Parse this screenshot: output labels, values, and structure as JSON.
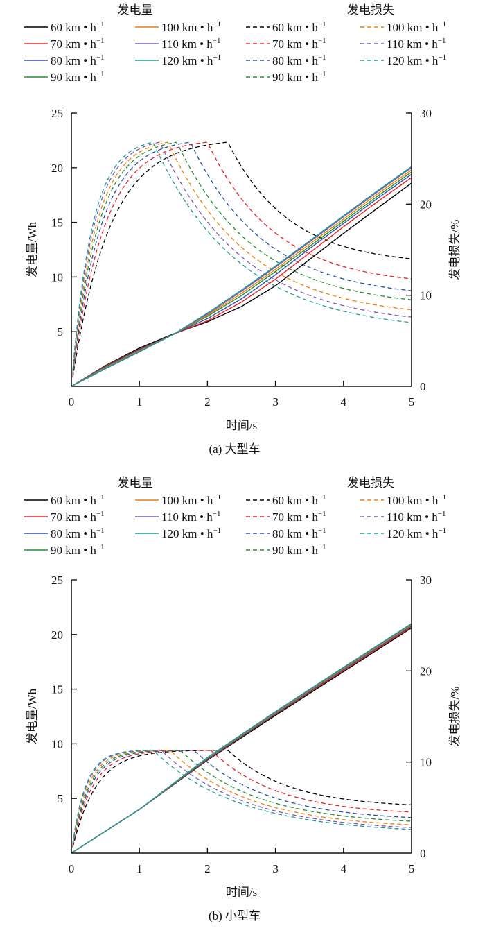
{
  "legend": {
    "group_power_title": "发电量",
    "group_loss_title": "发电损失",
    "unit": "km • h",
    "unit_sup": "−1"
  },
  "colors": {
    "60": "#000000",
    "70": "#e8202a",
    "80": "#2a4fa8",
    "90": "#1f8f2e",
    "100": "#f07f0a",
    "110": "#7a5cb8",
    "120": "#1f9a94"
  },
  "chart_data": [
    {
      "type": "line",
      "panel": "a",
      "caption": "(a)   大型车",
      "xlabel": "时间/s",
      "ylabel_left": "发电量/Wh",
      "ylabel_right": "发电损失/%",
      "xlim": [
        0,
        5
      ],
      "ylim_left": [
        0,
        25
      ],
      "ylim_right": [
        0,
        30
      ],
      "xticks": [
        "0",
        "1",
        "2",
        "3",
        "4",
        "5"
      ],
      "yticks_left": [
        "5",
        "10",
        "15",
        "20",
        "25"
      ],
      "yticks_right": [
        "0",
        "10",
        "20",
        "30"
      ],
      "grid": false,
      "legend_position": "top",
      "speeds": [
        "60",
        "70",
        "80",
        "90",
        "100",
        "110",
        "120"
      ],
      "power_series": [
        {
          "name": "60 km • h⁻¹",
          "x": [
            0,
            0.5,
            1,
            1.5,
            2,
            2.5,
            3,
            3.5,
            4,
            4.5,
            5
          ],
          "y": [
            0,
            1.9,
            3.5,
            4.8,
            5.9,
            7.3,
            9.2,
            11.6,
            14.0,
            16.3,
            18.6
          ]
        },
        {
          "name": "70 km • h⁻¹",
          "x": [
            0,
            0.5,
            1,
            1.5,
            2,
            2.5,
            3,
            3.5,
            4,
            4.5,
            5
          ],
          "y": [
            0,
            1.85,
            3.4,
            4.75,
            6.0,
            7.7,
            9.8,
            12.2,
            14.6,
            16.9,
            19.1
          ]
        },
        {
          "name": "80 km • h⁻¹",
          "x": [
            0,
            0.5,
            1,
            1.5,
            2,
            2.5,
            3,
            3.5,
            4,
            4.5,
            5
          ],
          "y": [
            0,
            1.8,
            3.35,
            4.75,
            6.2,
            8.0,
            10.2,
            12.6,
            14.9,
            17.2,
            19.4
          ]
        },
        {
          "name": "90 km • h⁻¹",
          "x": [
            0,
            0.5,
            1,
            1.5,
            2,
            2.5,
            3,
            3.5,
            4,
            4.5,
            5
          ],
          "y": [
            0,
            1.75,
            3.3,
            4.75,
            6.4,
            8.3,
            10.5,
            12.8,
            15.1,
            17.4,
            19.6
          ]
        },
        {
          "name": "100 km • h⁻¹",
          "x": [
            0,
            0.5,
            1,
            1.5,
            2,
            2.5,
            3,
            3.5,
            4,
            4.5,
            5
          ],
          "y": [
            0,
            1.7,
            3.25,
            4.75,
            6.5,
            8.5,
            10.7,
            13.0,
            15.3,
            17.6,
            19.8
          ]
        },
        {
          "name": "110 km • h⁻¹",
          "x": [
            0,
            0.5,
            1,
            1.5,
            2,
            2.5,
            3,
            3.5,
            4,
            4.5,
            5
          ],
          "y": [
            0,
            1.65,
            3.2,
            4.75,
            6.6,
            8.7,
            10.9,
            13.2,
            15.5,
            17.8,
            20.0
          ]
        },
        {
          "name": "120 km • h⁻¹",
          "x": [
            0,
            0.5,
            1,
            1.5,
            2,
            2.5,
            3,
            3.5,
            4,
            4.5,
            5
          ],
          "y": [
            0,
            1.6,
            3.15,
            4.75,
            6.7,
            8.8,
            11.0,
            13.3,
            15.6,
            17.9,
            20.1
          ]
        }
      ],
      "loss_series": [
        {
          "name": "60 km • h⁻¹",
          "peak_x": 2.3,
          "peak_y": 26.8,
          "rise_tau": 0.55,
          "end_y": 14.0
        },
        {
          "name": "70 km • h⁻¹",
          "peak_x": 2.0,
          "peak_y": 26.8,
          "rise_tau": 0.47,
          "end_y": 11.8
        },
        {
          "name": "80 km • h⁻¹",
          "peak_x": 1.75,
          "peak_y": 26.8,
          "rise_tau": 0.42,
          "end_y": 10.5
        },
        {
          "name": "90 km • h⁻¹",
          "peak_x": 1.55,
          "peak_y": 26.8,
          "rise_tau": 0.38,
          "end_y": 9.5
        },
        {
          "name": "100 km • h⁻¹",
          "peak_x": 1.42,
          "peak_y": 26.8,
          "rise_tau": 0.35,
          "end_y": 8.4
        },
        {
          "name": "110 km • h⁻¹",
          "peak_x": 1.3,
          "peak_y": 26.8,
          "rise_tau": 0.32,
          "end_y": 7.6
        },
        {
          "name": "120 km • h⁻¹",
          "peak_x": 1.2,
          "peak_y": 26.8,
          "rise_tau": 0.3,
          "end_y": 7.0
        }
      ]
    },
    {
      "type": "line",
      "panel": "b",
      "caption": "(b)   小型车",
      "xlabel": "时间/s",
      "ylabel_left": "发电量/Wh",
      "ylabel_right": "发电损失/%",
      "xlim": [
        0,
        5
      ],
      "ylim_left": [
        0,
        25
      ],
      "ylim_right": [
        0,
        30
      ],
      "xticks": [
        "0",
        "1",
        "2",
        "3",
        "4",
        "5"
      ],
      "yticks_left": [
        "5",
        "10",
        "15",
        "20",
        "25"
      ],
      "yticks_right": [
        "0",
        "10",
        "20",
        "30"
      ],
      "grid": false,
      "legend_position": "top",
      "speeds": [
        "60",
        "70",
        "80",
        "90",
        "100",
        "110",
        "120"
      ],
      "power_series": [
        {
          "name": "60 km • h⁻¹",
          "x": [
            0,
            1,
            2,
            3,
            4,
            5
          ],
          "y": [
            0,
            4.0,
            8.5,
            12.6,
            16.6,
            20.6
          ]
        },
        {
          "name": "70 km • h⁻¹",
          "x": [
            0,
            1,
            2,
            3,
            4,
            5
          ],
          "y": [
            0,
            4.0,
            8.55,
            12.7,
            16.7,
            20.7
          ]
        },
        {
          "name": "80 km • h⁻¹",
          "x": [
            0,
            1,
            2,
            3,
            4,
            5
          ],
          "y": [
            0,
            4.0,
            8.6,
            12.75,
            16.8,
            20.8
          ]
        },
        {
          "name": "90 km • h⁻¹",
          "x": [
            0,
            1,
            2,
            3,
            4,
            5
          ],
          "y": [
            0,
            4.0,
            8.65,
            12.8,
            16.85,
            20.85
          ]
        },
        {
          "name": "100 km • h⁻¹",
          "x": [
            0,
            1,
            2,
            3,
            4,
            5
          ],
          "y": [
            0,
            4.0,
            8.7,
            12.85,
            16.9,
            20.9
          ]
        },
        {
          "name": "110 km • h⁻¹",
          "x": [
            0,
            1,
            2,
            3,
            4,
            5
          ],
          "y": [
            0,
            4.0,
            8.72,
            12.9,
            16.95,
            20.95
          ]
        },
        {
          "name": "120 km • h⁻¹",
          "x": [
            0,
            1,
            2,
            3,
            4,
            5
          ],
          "y": [
            0,
            4.0,
            8.75,
            12.95,
            17.0,
            21.0
          ]
        }
      ],
      "loss_series": [
        {
          "name": "60 km • h⁻¹",
          "peak_x": 2.3,
          "peak_y": 11.3,
          "rise_tau": 0.35,
          "end_y": 5.3
        },
        {
          "name": "70 km • h⁻¹",
          "peak_x": 2.05,
          "peak_y": 11.3,
          "rise_tau": 0.3,
          "end_y": 4.5
        },
        {
          "name": "80 km • h⁻¹",
          "peak_x": 1.8,
          "peak_y": 11.3,
          "rise_tau": 0.27,
          "end_y": 3.9
        },
        {
          "name": "90 km • h⁻¹",
          "peak_x": 1.6,
          "peak_y": 11.3,
          "rise_tau": 0.25,
          "end_y": 3.5
        },
        {
          "name": "100 km • h⁻¹",
          "peak_x": 1.45,
          "peak_y": 11.3,
          "rise_tau": 0.23,
          "end_y": 3.1
        },
        {
          "name": "110 km • h⁻¹",
          "peak_x": 1.32,
          "peak_y": 11.3,
          "rise_tau": 0.21,
          "end_y": 2.8
        },
        {
          "name": "120 km • h⁻¹",
          "peak_x": 1.2,
          "peak_y": 11.3,
          "rise_tau": 0.2,
          "end_y": 2.6
        }
      ]
    }
  ]
}
